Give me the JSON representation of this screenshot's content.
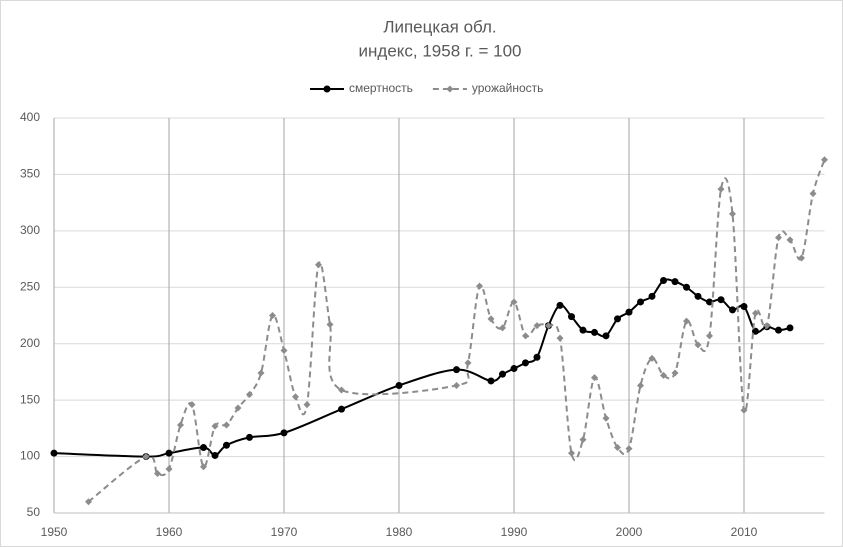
{
  "chart_data": {
    "type": "line",
    "title": "Липецкая обл.",
    "subtitle": "индекс, 1958 г. = 100",
    "xlim": [
      1950,
      2017
    ],
    "xticks": [
      1950,
      1960,
      1970,
      1980,
      1990,
      2000,
      2010
    ],
    "ylim": [
      50,
      400
    ],
    "yticks": [
      50,
      100,
      150,
      200,
      250,
      300,
      350,
      400
    ],
    "grid": true,
    "legend": "top",
    "series": [
      {
        "name": "смертность",
        "color": "#000000",
        "dash": false,
        "marker": "circle",
        "x": [
          1950,
          1958,
          1960,
          1963,
          1964,
          1965,
          1967,
          1970,
          1975,
          1980,
          1985,
          1988,
          1989,
          1990,
          1991,
          1992,
          1993,
          1994,
          1995,
          1996,
          1997,
          1998,
          1999,
          2000,
          2001,
          2002,
          2003,
          2004,
          2005,
          2006,
          2007,
          2008,
          2009,
          2010,
          2011,
          2012,
          2013,
          2014
        ],
        "values": [
          103,
          100,
          103,
          108,
          101,
          110,
          117,
          121,
          142,
          163,
          177,
          167,
          173,
          178,
          183,
          188,
          216,
          234,
          224,
          212,
          210,
          207,
          222,
          228,
          237,
          242,
          256,
          255,
          250,
          242,
          237,
          239,
          230,
          233,
          211,
          215,
          212,
          214
        ]
      },
      {
        "name": "урожайность",
        "color": "#8c8c8c",
        "dash": true,
        "marker": "diamond",
        "x": [
          1953,
          1958,
          1959,
          1960,
          1961,
          1962,
          1963,
          1964,
          1965,
          1966,
          1967,
          1968,
          1969,
          1970,
          1971,
          1972,
          1973,
          1974,
          1975,
          1985,
          1986,
          1987,
          1988,
          1989,
          1990,
          1991,
          1992,
          1993,
          1994,
          1995,
          1996,
          1997,
          1998,
          1999,
          2000,
          2001,
          2002,
          2003,
          2004,
          2005,
          2006,
          2007,
          2008,
          2009,
          2010,
          2011,
          2012,
          2013,
          2014,
          2015,
          2016,
          2017
        ],
        "values": [
          60,
          100,
          85,
          89,
          128,
          146,
          91,
          127,
          128,
          143,
          155,
          174,
          225,
          194,
          153,
          146,
          270,
          217,
          159,
          163,
          183,
          251,
          222,
          214,
          237,
          207,
          216,
          216,
          205,
          103,
          115,
          170,
          134,
          108,
          107,
          163,
          187,
          172,
          174,
          220,
          199,
          207,
          337,
          315,
          141,
          227,
          216,
          294,
          292,
          276,
          333,
          363
        ]
      }
    ]
  }
}
